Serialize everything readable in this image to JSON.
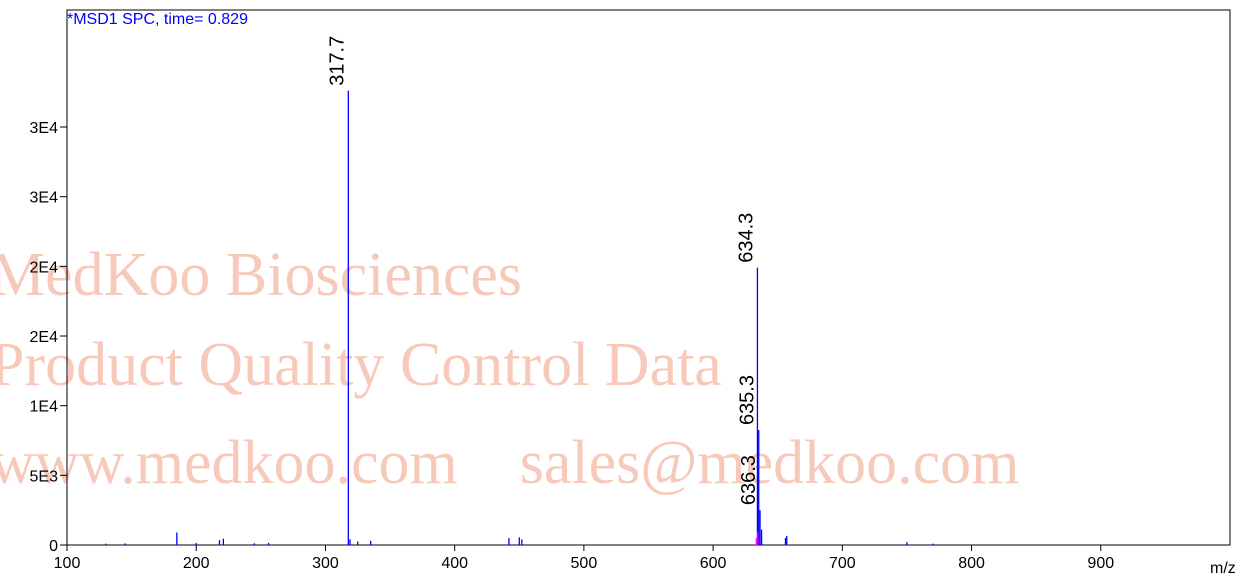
{
  "chart_data": {
    "type": "spectrum",
    "title": "*MSD1 SPC, time= 0.829",
    "x_label": "m/z",
    "watermark": [
      "MedKoo Biosciences",
      "Product Quality Control Data",
      "www.medkoo.com    sales@medkoo.com"
    ],
    "xlim": [
      100,
      1000
    ],
    "xticks": [
      100,
      200,
      300,
      400,
      500,
      600,
      700,
      800,
      900
    ],
    "ylim": [
      0,
      38400
    ],
    "yticks": [
      0,
      {
        "value": 5000,
        "label": "5E3"
      },
      {
        "value": 10000,
        "label": "1E4"
      },
      {
        "value": 15000,
        "label": "2E4"
      },
      {
        "value": 20000,
        "label": "2E4"
      },
      {
        "value": 25000,
        "label": "3E4"
      },
      {
        "value": 30000,
        "label": "3E4"
      }
    ],
    "series": [
      {
        "color": "#0000ff",
        "x": [
          317.7,
          634.3,
          635.3,
          636.3
        ],
        "values": [
          32600,
          19900,
          8250,
          2500
        ]
      },
      {
        "color": "#0000ff",
        "x": [
          130,
          145,
          185,
          200,
          218,
          221,
          245,
          256,
          319,
          325,
          335,
          442,
          450,
          452,
          637.5,
          656,
          657,
          750,
          770
        ],
        "values": [
          100,
          120,
          900,
          150,
          350,
          450,
          120,
          150,
          400,
          250,
          300,
          500,
          550,
          400,
          1100,
          500,
          650,
          200,
          100
        ]
      },
      {
        "color": "#ff00ff",
        "x": [
          633.5,
          634.6
        ],
        "values": [
          500,
          900
        ]
      }
    ]
  }
}
